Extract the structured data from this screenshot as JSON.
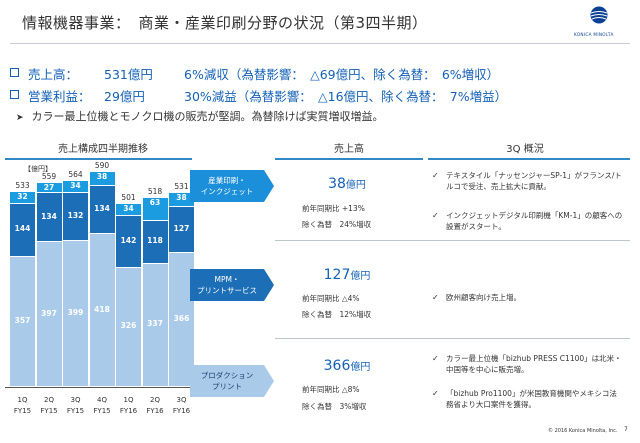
{
  "header": {
    "title": "情報機器事業：　商業・産業印刷分野の状況（第3四半期）",
    "logo_text": "KONICA MINOLTA"
  },
  "bullets": [
    {
      "label": "売上高：",
      "value": "531億円",
      "change": "6%減収（為替影響：　△69億円、除く為替：　6%増収）"
    },
    {
      "label": "営業利益：",
      "value": "29億円",
      "change": "30%減益（為替影響：　△16億円、除く為替：　7%増益）"
    }
  ],
  "note": "カラー最上位機とモノクロ機の販売が堅調。為替除けば実質増収増益。",
  "sections": {
    "chart_header": "売上構成四半期推移",
    "sales_header": "売上高",
    "overview_header": "3Q 概況"
  },
  "chart_data": {
    "type": "bar",
    "stacked": true,
    "unit": "【億円】",
    "categories": [
      [
        "1Q",
        "FY15"
      ],
      [
        "2Q",
        "FY15"
      ],
      [
        "3Q",
        "FY15"
      ],
      [
        "4Q",
        "FY15"
      ],
      [
        "1Q",
        "FY16"
      ],
      [
        "2Q",
        "FY16"
      ],
      [
        "3Q",
        "FY16"
      ]
    ],
    "series": [
      {
        "name": "プロダクションプリント",
        "values": [
          357,
          397,
          399,
          418,
          326,
          337,
          366
        ],
        "color": "#a9cbe9"
      },
      {
        "name": "MPM・プリントサービス",
        "values": [
          144,
          134,
          132,
          134,
          142,
          118,
          127
        ],
        "color": "#1c6fb7"
      },
      {
        "name": "産業印刷・インクジェット",
        "values": [
          32,
          27,
          34,
          38,
          34,
          63,
          38
        ],
        "color": "#1b9ce0"
      }
    ],
    "totals": [
      533,
      559,
      564,
      590,
      501,
      518,
      531
    ],
    "ylim": [
      0,
      600
    ],
    "grid": false
  },
  "rows": [
    {
      "category": [
        "産業印刷・",
        "インクジェット"
      ],
      "amount": "38",
      "unit": "億円",
      "yoy_label": "前年同期比",
      "yoy": "+13%",
      "exfx_label": "除く為替",
      "exfx": "24%増収",
      "overview": [
        "テキスタイル「ナッセンジャーSP-1」がフランス/トルコで受注、売上拡大に貢献。",
        "インクジェットデジタル印刷機「KM-1」の顧客への設置がスタート。"
      ]
    },
    {
      "category": [
        "MPM・",
        "プリントサービス"
      ],
      "amount": "127",
      "unit": "億円",
      "yoy_label": "前年同期比",
      "yoy": "△4%",
      "exfx_label": "除く為替",
      "exfx": "12%増収",
      "overview": [
        "欧州顧客向け売上増。"
      ]
    },
    {
      "category": [
        "プロダクション",
        "プリント"
      ],
      "amount": "366",
      "unit": "億円",
      "yoy_label": "前年同期比",
      "yoy": "△8%",
      "exfx_label": "除く為替",
      "exfx": "3%増収",
      "overview": [
        "カラー最上位機「bizhub PRESS C1100」は北米・中国等を中心に販売増。",
        "「bizhub Pro1100」が米国教育機関やメキシコ法務省より大口案件を獲得。"
      ]
    }
  ],
  "footer": {
    "copyright": "© 2016 Konica Minolta, Inc.",
    "page": "7"
  }
}
